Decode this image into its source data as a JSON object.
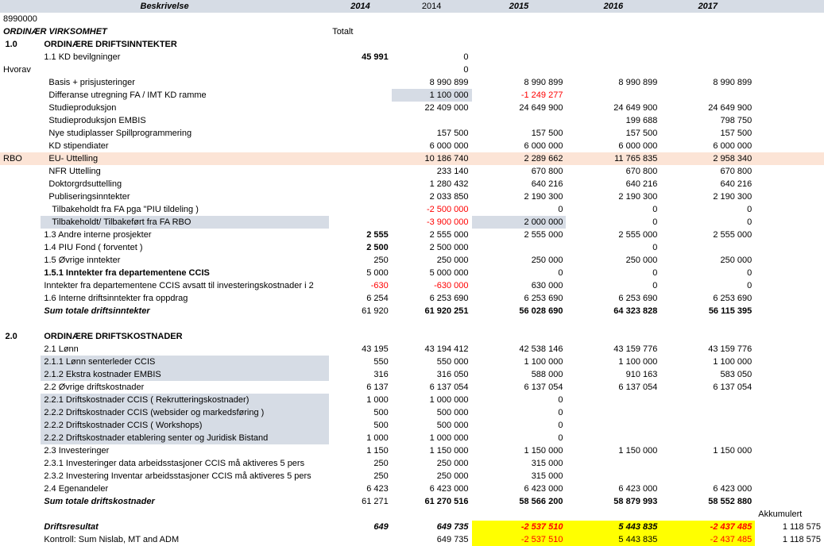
{
  "header": {
    "beskrivelse": "Beskrivelse",
    "y2014a": "2014",
    "y2014b": "2014",
    "y2015": "2015",
    "y2016": "2016",
    "y2017": "2017"
  },
  "code": "8990000",
  "section_title": "ORDINÆR VIRKSOMHET",
  "totalt": "Totalt",
  "s1": {
    "num": "1.0",
    "title": "ORDINÆRE DRIFTSINNTEKTER"
  },
  "r_kd": {
    "label": "1.1 KD bevilgninger",
    "v1": "45 991",
    "v2": "0"
  },
  "hvorav": "Hvorav",
  "r_basis": {
    "label": "Basis + prisjusteringer",
    "v2": "8 990 899",
    "v3": "8 990 899",
    "v4": "8 990 899",
    "v5": "8 990 899"
  },
  "r_diff": {
    "label": "Differanse utregning FA / IMT KD ramme",
    "v2": "1 100 000",
    "v3": "-1 249 277"
  },
  "r_studie": {
    "label": "Studieproduksjon",
    "v2": "22 409 000",
    "v3": "24 649 900",
    "v4": "24 649 900",
    "v5": "24 649 900"
  },
  "r_embis": {
    "label": "Studieproduksjon EMBIS",
    "v4": "199 688",
    "v5": "798 750"
  },
  "r_nye": {
    "label": "Nye studiplasser Spillprogrammering",
    "v2": "157 500",
    "v3": "157 500",
    "v4": "157 500",
    "v5": "157 500"
  },
  "r_kdst": {
    "label": "KD stipendiater",
    "v2": "6 000 000",
    "v3": "6 000 000",
    "v4": "6 000 000",
    "v5": "6 000 000"
  },
  "rbo_label": "RBO:",
  "r_eu": {
    "label": "EU- Uttelling",
    "v2": "10 186 740",
    "v3": "2 289 662",
    "v4": "11 765 835",
    "v5": "2 958 340"
  },
  "r_nfr": {
    "label": "NFR Uttelling",
    "v2": "233 140",
    "v3": "670 800",
    "v4": "670 800",
    "v5": "670 800"
  },
  "r_dokt": {
    "label": "Doktorgrdsuttelling",
    "v2": "1 280 432",
    "v3": "640 216",
    "v4": "640 216",
    "v5": "640 216"
  },
  "r_publ": {
    "label": "Publiseringsinntekter",
    "v2": "2 033 850",
    "v3": "2 190 300",
    "v4": "2 190 300",
    "v5": "2 190 300"
  },
  "r_tilb1": {
    "label": "Tilbakeholdt fra FA pga \"PIU tildeling )",
    "v2": "-2 500 000",
    "v3": "0",
    "v4": "0",
    "v5": "0"
  },
  "r_tilb2": {
    "label": "Tilbakeholdt/ Tilbakeført fra FA RBO",
    "v2": "-3 900 000",
    "v3": "2 000 000",
    "v4": "0",
    "v5": "0"
  },
  "r_13": {
    "label": "1.3 Andre interne prosjekter",
    "v1": "2 555",
    "v2": "2 555 000",
    "v3": "2 555 000",
    "v4": "2 555 000",
    "v5": "2 555 000"
  },
  "r_14": {
    "label": "1.4 PIU Fond ( forventet )",
    "v1": "2 500",
    "v2": "2 500 000",
    "v4": "0"
  },
  "r_15": {
    "label": "1.5 Øvrige inntekter",
    "v1": "250",
    "v2": "250 000",
    "v3": "250 000",
    "v4": "250 000",
    "v5": "250 000"
  },
  "r_151": {
    "label": "1.5.1 Inntekter fra departementene CCIS",
    "v1": "5 000",
    "v2": "5 000 000",
    "v3": "0",
    "v4": "0",
    "v5": "0"
  },
  "r_avs": {
    "label": "Inntekter fra departementene CCIS avsatt til investeringskostnader i 2",
    "v1": "-630",
    "v2": "-630 000",
    "v3": "630 000",
    "v4": "0",
    "v5": "0"
  },
  "r_16": {
    "label": "1.6 Interne driftsinntekter fra oppdrag",
    "v1": "6 254",
    "v2": "6 253 690",
    "v3": "6 253 690",
    "v4": "6 253 690",
    "v5": "6 253 690"
  },
  "r_sum1": {
    "label": "Sum totale driftsinntekter",
    "v1": "61 920",
    "v2": "61 920 251",
    "v3": "56 028 690",
    "v4": "64 323 828",
    "v5": "56 115 395"
  },
  "s2": {
    "num": "2.0",
    "title": "ORDINÆRE DRIFTSKOSTNADER"
  },
  "r_21": {
    "label": "2.1 Lønn",
    "v1": "43 195",
    "v2": "43 194 412",
    "v3": "42 538 146",
    "v4": "43 159 776",
    "v5": "43 159 776"
  },
  "r_211": {
    "label": "2.1.1 Lønn senterleder CCIS",
    "v1": "550",
    "v2": "550 000",
    "v3": "1 100 000",
    "v4": "1 100 000",
    "v5": "1 100 000"
  },
  "r_212": {
    "label": "2.1.2 Ekstra kostnader EMBIS",
    "v1": "316",
    "v2": "316 050",
    "v3": "588 000",
    "v4": "910 163",
    "v5": "583 050"
  },
  "r_22": {
    "label": "2.2 Øvrige driftskostnader",
    "v1": "6 137",
    "v2": "6 137 054",
    "v3": "6 137 054",
    "v4": "6 137 054",
    "v5": "6 137 054"
  },
  "r_221a": {
    "label": "2.2.1 Driftskostnader CCIS ( Rekrutteringskostnader)",
    "v1": "1 000",
    "v2": "1 000 000",
    "v3": "0"
  },
  "r_222a": {
    "label": "2.2.2 Driftskostnader CCIS (websider og markedsføring )",
    "v1": "500",
    "v2": "500 000",
    "v3": "0"
  },
  "r_222b": {
    "label": "2.2.2 Driftskostnader CCIS ( Workshops)",
    "v1": "500",
    "v2": "500 000",
    "v3": "0"
  },
  "r_222c": {
    "label": "2.2.2 Driftskostnader etablering senter og Juridisk Bistand",
    "v1": "1 000",
    "v2": "1 000 000",
    "v3": "0"
  },
  "r_23": {
    "label": "2.3 Investeringer",
    "v1": "1 150",
    "v2": "1 150 000",
    "v3": "1 150 000",
    "v4": "1 150 000",
    "v5": "1 150 000"
  },
  "r_231": {
    "label": "2.3.1 Investeringer data arbeidsstasjoner CCIS må aktiveres 5 pers",
    "v1": "250",
    "v2": "250 000",
    "v3": "315 000"
  },
  "r_232": {
    "label": "2.3.2 Investering Inventar arbeidsstasjoner CCIS må aktiveres 5 pers",
    "v1": "250",
    "v2": "250 000",
    "v3": "315 000"
  },
  "r_24": {
    "label": "2.4 Egenandeler",
    "v1": "6 423",
    "v2": "6 423 000",
    "v3": "6 423 000",
    "v4": "6 423 000",
    "v5": "6 423 000"
  },
  "r_sum2": {
    "label": "Sum totale driftskostnader",
    "v1": "61 271",
    "v2": "61 270 516",
    "v3": "58 566 200",
    "v4": "58 879 993",
    "v5": "58 552 880"
  },
  "akk_label": "Akkumulert",
  "r_drift": {
    "label": "Driftsresultat",
    "v1": "649",
    "v2": "649 735",
    "v3": "-2 537 510",
    "v4": "5 443 835",
    "v5": "-2 437 485",
    "v6": "1 118 575"
  },
  "r_kontr": {
    "label": "Kontroll:  Sum Nislab, MT and ADM",
    "v2": "649 735",
    "v3": "-2 537 510",
    "v4": "5 443 835",
    "v5": "-2 437 485",
    "v6": "1 118 575"
  }
}
